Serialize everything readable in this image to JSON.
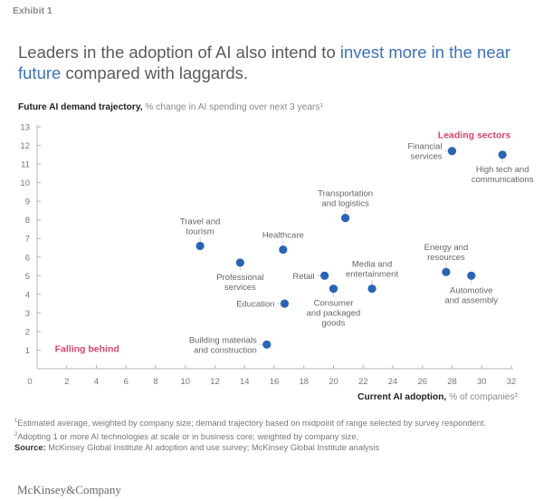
{
  "exhibit": "Exhibit 1",
  "headline": {
    "part1": "Leaders in the adoption of AI also intend to ",
    "highlight": "invest more in the near future",
    "part2": " compared with laggards."
  },
  "colors": {
    "dot": "#2a64b4",
    "zone": "#d9456a",
    "highlight": "#3d72b5"
  },
  "chart_data": {
    "type": "scatter",
    "title": "Leaders in the adoption of AI also intend to invest more in the near future compared with laggards.",
    "ylabel_bold": "Future AI demand trajectory,",
    "ylabel_rest": " % change in AI spending over next 3 years¹",
    "xlabel_bold": "Current AI adoption,",
    "xlabel_rest": " % of companies²",
    "xlim": [
      0,
      32
    ],
    "ylim": [
      0,
      13
    ],
    "xticks": [
      0,
      2,
      4,
      6,
      8,
      10,
      12,
      14,
      16,
      18,
      20,
      22,
      24,
      26,
      28,
      30,
      32
    ],
    "yticks": [
      1,
      2,
      3,
      4,
      5,
      6,
      7,
      8,
      9,
      10,
      11,
      12,
      13
    ],
    "grid": false,
    "annotations": [
      {
        "text": "Leading sectors",
        "x": 29.5,
        "y": 12.4,
        "anchor": "middle"
      },
      {
        "text": "Falling behind",
        "x": 1.2,
        "y": 0.9,
        "anchor": "start"
      }
    ],
    "points": [
      {
        "name": "Travel and tourism",
        "lines": [
          "Travel and",
          "tourism"
        ],
        "x": 11.0,
        "y": 6.6,
        "label_pos": "above"
      },
      {
        "name": "Healthcare",
        "lines": [
          "Healthcare"
        ],
        "x": 16.6,
        "y": 6.4,
        "label_pos": "above"
      },
      {
        "name": "Professional services",
        "lines": [
          "Professional",
          "services"
        ],
        "x": 13.7,
        "y": 5.7,
        "label_pos": "below"
      },
      {
        "name": "Retail",
        "lines": [
          "Retail"
        ],
        "x": 19.4,
        "y": 5.0,
        "label_pos": "left"
      },
      {
        "name": "Education",
        "lines": [
          "Education"
        ],
        "x": 16.7,
        "y": 3.5,
        "label_pos": "left"
      },
      {
        "name": "Consumer and packaged goods",
        "lines": [
          "Consumer",
          "and packaged",
          "goods"
        ],
        "x": 20.0,
        "y": 4.3,
        "label_pos": "below"
      },
      {
        "name": "Media and entertainment",
        "lines": [
          "Media and",
          "entertainment"
        ],
        "x": 22.6,
        "y": 4.3,
        "label_pos": "above"
      },
      {
        "name": "Building materials and construction",
        "lines": [
          "Building materials",
          "and construction"
        ],
        "x": 15.5,
        "y": 1.3,
        "label_pos": "left"
      },
      {
        "name": "Transportation and logistics",
        "lines": [
          "Transportation",
          "and logistics"
        ],
        "x": 20.8,
        "y": 8.1,
        "label_pos": "above"
      },
      {
        "name": "Financial services",
        "lines": [
          "Financial",
          "services"
        ],
        "x": 28.0,
        "y": 11.7,
        "label_pos": "left"
      },
      {
        "name": "High tech and communications",
        "lines": [
          "High tech and",
          "communications"
        ],
        "x": 31.4,
        "y": 11.5,
        "label_pos": "below"
      },
      {
        "name": "Energy and resources",
        "lines": [
          "Energy and",
          "resources"
        ],
        "x": 27.6,
        "y": 5.2,
        "label_pos": "above"
      },
      {
        "name": "Automotive and assembly",
        "lines": [
          "Automotive",
          "and assembly"
        ],
        "x": 29.3,
        "y": 5.0,
        "label_pos": "below"
      }
    ]
  },
  "footnotes": {
    "note1_mark": "1",
    "note1": "Estimated average, weighted by company size; demand trajectory based on midpoint of range selected by survey respondent.",
    "note2_mark": "2",
    "note2": "Adopting 1 or more AI technologies at scale or in business core; weighted by company size.",
    "source_label": "Source:",
    "source": " McKinsey Global Institute AI adoption and use survey; McKinsey Global Institute analysis"
  },
  "logo": "McKinsey&Company"
}
